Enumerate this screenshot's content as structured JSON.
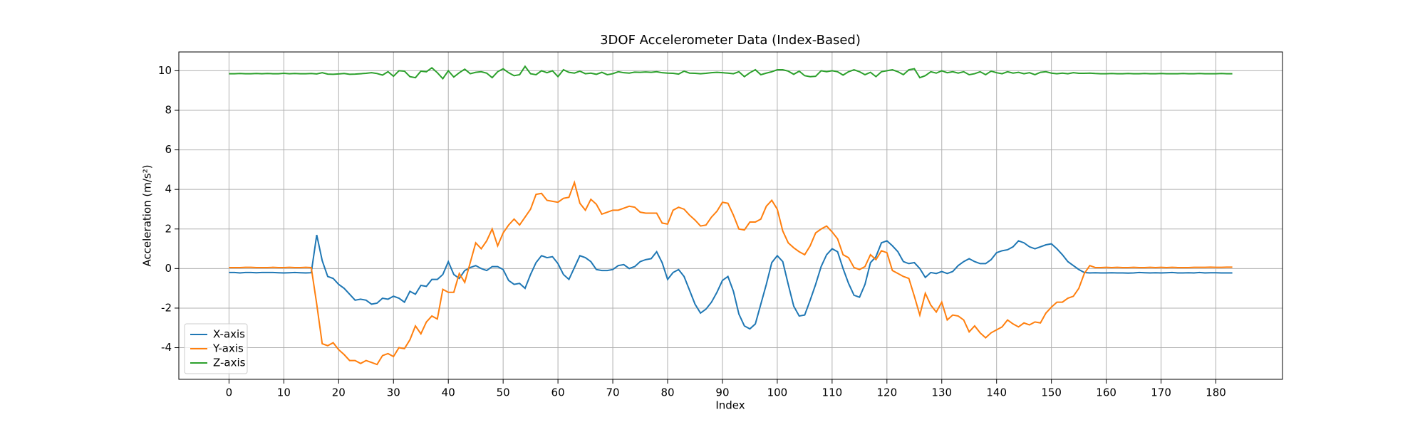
{
  "chart_data": {
    "type": "line",
    "title": "3DOF Accelerometer Data (Index-Based)",
    "xlabel": "Index",
    "ylabel": "Acceleration (m/s²)",
    "x": [
      0,
      1,
      2,
      3,
      4,
      5,
      6,
      7,
      8,
      9,
      10,
      11,
      12,
      13,
      14,
      15,
      16,
      17,
      18,
      19,
      20,
      21,
      22,
      23,
      24,
      25,
      26,
      27,
      28,
      29,
      30,
      31,
      32,
      33,
      34,
      35,
      36,
      37,
      38,
      39,
      40,
      41,
      42,
      43,
      44,
      45,
      46,
      47,
      48,
      49,
      50,
      51,
      52,
      53,
      54,
      55,
      56,
      57,
      58,
      59,
      60,
      61,
      62,
      63,
      64,
      65,
      66,
      67,
      68,
      69,
      70,
      71,
      72,
      73,
      74,
      75,
      76,
      77,
      78,
      79,
      80,
      81,
      82,
      83,
      84,
      85,
      86,
      87,
      88,
      89,
      90,
      91,
      92,
      93,
      94,
      95,
      96,
      97,
      98,
      99,
      100,
      101,
      102,
      103,
      104,
      105,
      106,
      107,
      108,
      109,
      110,
      111,
      112,
      113,
      114,
      115,
      116,
      117,
      118,
      119,
      120,
      121,
      122,
      123,
      124,
      125,
      126,
      127,
      128,
      129,
      130,
      131,
      132,
      133,
      134,
      135,
      136,
      137,
      138,
      139,
      140,
      141,
      142,
      143,
      144,
      145,
      146,
      147,
      148,
      149,
      150,
      151,
      152,
      153,
      154,
      155,
      156,
      157,
      158,
      159,
      160,
      161,
      162,
      163,
      164,
      165,
      166,
      167,
      168,
      169,
      170,
      171,
      172,
      173,
      174,
      175,
      176,
      177,
      178,
      179,
      180,
      181,
      182,
      183
    ],
    "series": [
      {
        "name": "X-axis",
        "color": "#1f77b4",
        "values": [
          -0.2,
          -0.2,
          -0.22,
          -0.2,
          -0.2,
          -0.21,
          -0.2,
          -0.2,
          -0.2,
          -0.21,
          -0.22,
          -0.21,
          -0.2,
          -0.21,
          -0.22,
          -0.21,
          1.7,
          0.4,
          -0.4,
          -0.5,
          -0.8,
          -1.0,
          -1.3,
          -1.6,
          -1.55,
          -1.6,
          -1.8,
          -1.75,
          -1.5,
          -1.55,
          -1.4,
          -1.5,
          -1.7,
          -1.15,
          -1.3,
          -0.85,
          -0.9,
          -0.55,
          -0.55,
          -0.3,
          0.35,
          -0.3,
          -0.5,
          -0.1,
          0.05,
          0.15,
          0.0,
          -0.1,
          0.1,
          0.1,
          -0.05,
          -0.6,
          -0.8,
          -0.75,
          -1.0,
          -0.3,
          0.3,
          0.65,
          0.55,
          0.6,
          0.25,
          -0.3,
          -0.55,
          0.05,
          0.65,
          0.55,
          0.35,
          -0.05,
          -0.1,
          -0.1,
          -0.05,
          0.15,
          0.2,
          0.0,
          0.1,
          0.35,
          0.45,
          0.5,
          0.85,
          0.3,
          -0.55,
          -0.2,
          -0.05,
          -0.4,
          -1.1,
          -1.8,
          -2.25,
          -2.05,
          -1.7,
          -1.2,
          -0.6,
          -0.4,
          -1.15,
          -2.3,
          -2.9,
          -3.05,
          -2.8,
          -1.8,
          -0.8,
          0.3,
          0.65,
          0.35,
          -0.8,
          -1.9,
          -2.4,
          -2.35,
          -1.6,
          -0.8,
          0.1,
          0.7,
          1.0,
          0.85,
          0.0,
          -0.75,
          -1.35,
          -1.45,
          -0.8,
          0.3,
          0.6,
          1.3,
          1.4,
          1.15,
          0.85,
          0.35,
          0.25,
          0.3,
          0.0,
          -0.45,
          -0.2,
          -0.25,
          -0.15,
          -0.25,
          -0.15,
          0.15,
          0.35,
          0.5,
          0.35,
          0.25,
          0.25,
          0.45,
          0.8,
          0.9,
          0.95,
          1.1,
          1.4,
          1.3,
          1.1,
          1.0,
          1.1,
          1.2,
          1.25,
          1.0,
          0.7,
          0.35,
          0.15,
          -0.05,
          -0.2,
          -0.22,
          -0.21,
          -0.22,
          -0.22,
          -0.21,
          -0.22,
          -0.22,
          -0.23,
          -0.22,
          -0.2,
          -0.21,
          -0.22,
          -0.21,
          -0.22,
          -0.21,
          -0.2,
          -0.22,
          -0.22,
          -0.21,
          -0.22,
          -0.2,
          -0.22,
          -0.21,
          -0.21,
          -0.22,
          -0.22,
          -0.22
        ]
      },
      {
        "name": "Y-axis",
        "color": "#ff7f0e",
        "values": [
          0.05,
          0.05,
          0.05,
          0.06,
          0.06,
          0.05,
          0.05,
          0.05,
          0.06,
          0.05,
          0.05,
          0.06,
          0.05,
          0.05,
          0.06,
          0.05,
          -1.8,
          -3.8,
          -3.9,
          -3.75,
          -4.1,
          -4.35,
          -4.65,
          -4.65,
          -4.8,
          -4.65,
          -4.75,
          -4.85,
          -4.4,
          -4.3,
          -4.45,
          -4.0,
          -4.05,
          -3.6,
          -2.9,
          -3.3,
          -2.7,
          -2.4,
          -2.55,
          -1.05,
          -1.2,
          -1.2,
          -0.25,
          -0.7,
          0.3,
          1.3,
          1.0,
          1.4,
          2.0,
          1.15,
          1.8,
          2.2,
          2.5,
          2.2,
          2.6,
          3.0,
          3.75,
          3.8,
          3.45,
          3.4,
          3.35,
          3.55,
          3.6,
          4.35,
          3.3,
          2.95,
          3.5,
          3.25,
          2.75,
          2.85,
          2.95,
          2.95,
          3.05,
          3.15,
          3.1,
          2.85,
          2.8,
          2.8,
          2.8,
          2.3,
          2.25,
          2.95,
          3.1,
          3.0,
          2.7,
          2.45,
          2.15,
          2.2,
          2.6,
          2.9,
          3.35,
          3.3,
          2.7,
          2.0,
          1.95,
          2.35,
          2.35,
          2.5,
          3.15,
          3.45,
          3.0,
          1.9,
          1.3,
          1.05,
          0.85,
          0.7,
          1.15,
          1.8,
          2.0,
          2.15,
          1.85,
          1.5,
          0.7,
          0.55,
          0.05,
          -0.05,
          0.1,
          0.7,
          0.45,
          0.9,
          0.8,
          -0.1,
          -0.25,
          -0.4,
          -0.5,
          -1.4,
          -2.35,
          -1.25,
          -1.85,
          -2.2,
          -1.7,
          -2.6,
          -2.35,
          -2.4,
          -2.6,
          -3.2,
          -2.9,
          -3.25,
          -3.5,
          -3.25,
          -3.1,
          -2.95,
          -2.6,
          -2.8,
          -2.95,
          -2.75,
          -2.85,
          -2.7,
          -2.75,
          -2.25,
          -1.95,
          -1.7,
          -1.7,
          -1.5,
          -1.4,
          -1.0,
          -0.25,
          0.15,
          0.05,
          0.05,
          0.06,
          0.05,
          0.06,
          0.05,
          0.05,
          0.06,
          0.05,
          0.05,
          0.06,
          0.05,
          0.06,
          0.05,
          0.06,
          0.05,
          0.05,
          0.05,
          0.06,
          0.06,
          0.06,
          0.07,
          0.06,
          0.06,
          0.07,
          0.07
        ]
      },
      {
        "name": "Z-axis",
        "color": "#2ca02c",
        "values": [
          9.85,
          9.85,
          9.86,
          9.85,
          9.85,
          9.86,
          9.85,
          9.86,
          9.85,
          9.85,
          9.87,
          9.85,
          9.86,
          9.85,
          9.85,
          9.86,
          9.84,
          9.9,
          9.83,
          9.82,
          9.84,
          9.86,
          9.82,
          9.83,
          9.85,
          9.87,
          9.9,
          9.86,
          9.78,
          9.95,
          9.72,
          10.0,
          9.98,
          9.7,
          9.65,
          9.98,
          9.95,
          10.15,
          9.9,
          9.6,
          10.0,
          9.68,
          9.9,
          10.08,
          9.85,
          9.92,
          9.95,
          9.88,
          9.65,
          9.95,
          10.1,
          9.9,
          9.75,
          9.8,
          10.22,
          9.85,
          9.8,
          10.0,
          9.9,
          10.0,
          9.7,
          10.05,
          9.92,
          9.88,
          9.98,
          9.85,
          9.88,
          9.82,
          9.92,
          9.8,
          9.85,
          9.95,
          9.9,
          9.88,
          9.93,
          9.92,
          9.94,
          9.92,
          9.95,
          9.9,
          9.88,
          9.87,
          9.83,
          9.98,
          9.88,
          9.87,
          9.85,
          9.87,
          9.9,
          9.92,
          9.9,
          9.88,
          9.85,
          9.95,
          9.7,
          9.9,
          10.05,
          9.8,
          9.88,
          9.95,
          10.05,
          10.05,
          9.98,
          9.82,
          9.98,
          9.75,
          9.7,
          9.72,
          10.0,
          9.95,
          10.0,
          9.95,
          9.78,
          9.95,
          10.05,
          9.95,
          9.8,
          9.92,
          9.7,
          9.95,
          10.0,
          10.05,
          9.95,
          9.8,
          10.05,
          10.1,
          9.65,
          9.75,
          9.95,
          9.88,
          10.0,
          9.9,
          9.95,
          9.88,
          9.95,
          9.8,
          9.85,
          9.95,
          9.8,
          9.98,
          9.9,
          9.85,
          9.95,
          9.88,
          9.92,
          9.85,
          9.9,
          9.8,
          9.92,
          9.95,
          9.88,
          9.85,
          9.88,
          9.85,
          9.9,
          9.87,
          9.87,
          9.88,
          9.86,
          9.85,
          9.85,
          9.86,
          9.85,
          9.85,
          9.86,
          9.85,
          9.85,
          9.86,
          9.85,
          9.85,
          9.86,
          9.85,
          9.85,
          9.85,
          9.86,
          9.85,
          9.85,
          9.86,
          9.85,
          9.85,
          9.85,
          9.86,
          9.85,
          9.85
        ]
      }
    ],
    "xlim": [
      -9.15,
      192.15
    ],
    "ylim": [
      -5.6,
      10.95
    ],
    "xticks": [
      0,
      10,
      20,
      30,
      40,
      50,
      60,
      70,
      80,
      90,
      100,
      110,
      120,
      130,
      140,
      150,
      160,
      170,
      180
    ],
    "yticks": [
      -4,
      -2,
      0,
      2,
      4,
      6,
      8,
      10
    ],
    "grid": true,
    "legend": "lower left"
  }
}
